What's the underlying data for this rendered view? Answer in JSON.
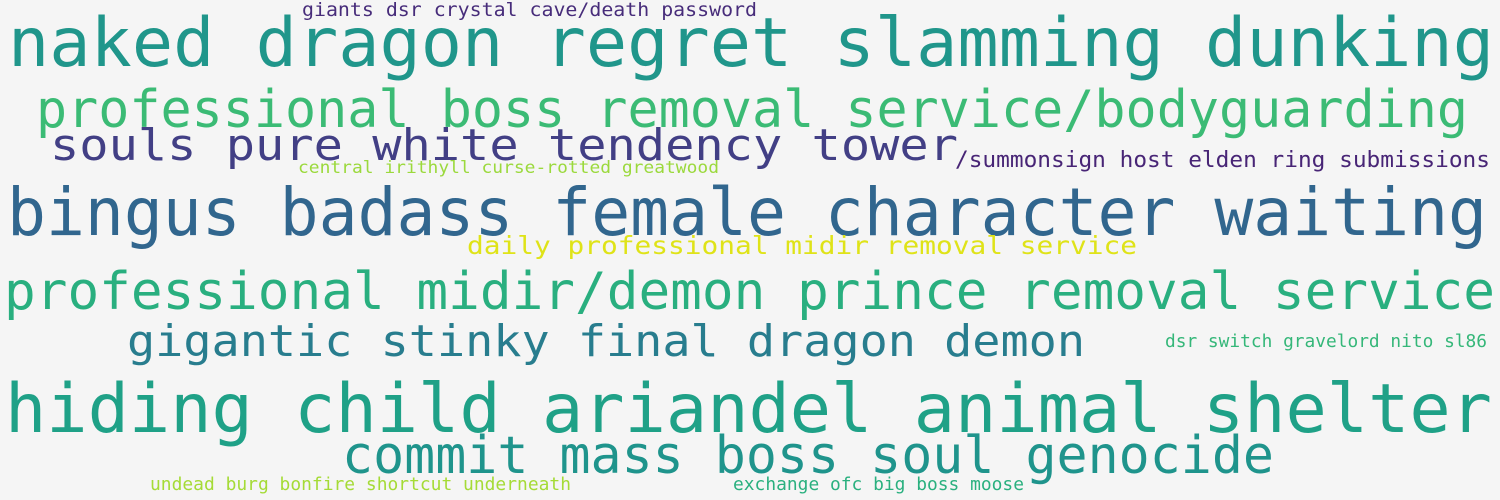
{
  "phrases": [
    {
      "id": "giants-dsr-crystal-cave-death-password",
      "text": "giants dsr crystal cave/death password",
      "color": "#472c7a"
    },
    {
      "id": "naked-dragon-regret-slamming-dunking",
      "text": "naked dragon regret slamming dunking",
      "color": "#20968b"
    },
    {
      "id": "professional-boss-removal-service-bodyguarding",
      "text": "professional boss removal service/bodyguarding",
      "color": "#3bbb75"
    },
    {
      "id": "souls-pure-white-tendency-tower",
      "text": "souls pure white tendency tower",
      "color": "#423f85"
    },
    {
      "id": "summonsign-host-elden-ring-submissions",
      "text": "/summonsign host elden ring submissions",
      "color": "#482576"
    },
    {
      "id": "central-irithyll-curse-rotted-greatwood",
      "text": "central irithyll curse-rotted greatwood",
      "color": "#9bd93c"
    },
    {
      "id": "bingus-badass-female-character-waiting",
      "text": "bingus badass female character waiting",
      "color": "#31668e"
    },
    {
      "id": "daily-professional-midir-removal-service",
      "text": "daily professional midir removal service",
      "color": "#dfe318"
    },
    {
      "id": "professional-midir-demon-prince-removal-service",
      "text": "professional midir/demon prince removal service",
      "color": "#29af7f"
    },
    {
      "id": "gigantic-stinky-final-dragon-demon",
      "text": "gigantic stinky final dragon demon",
      "color": "#287d8e"
    },
    {
      "id": "dsr-switch-gravelord-nito-sl86",
      "text": "dsr switch gravelord nito sl86",
      "color": "#35b779"
    },
    {
      "id": "hiding-child-ariandel-animal-shelter",
      "text": "hiding child ariandel animal shelter",
      "color": "#1fa187"
    },
    {
      "id": "commit-mass-boss-soul-genocide",
      "text": "commit mass boss soul genocide",
      "color": "#1f948c"
    },
    {
      "id": "undead-burg-bonfire-shortcut-underneath",
      "text": "undead burg bonfire shortcut underneath",
      "color": "#a5db36"
    },
    {
      "id": "exchange-ofc-big-boss-moose",
      "text": "exchange ofc big boss moose",
      "color": "#2ab07f"
    }
  ]
}
